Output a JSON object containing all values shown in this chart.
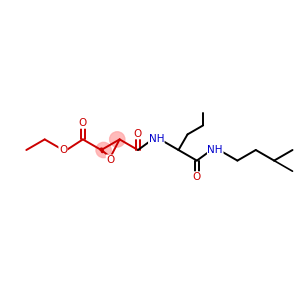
{
  "background_color": "#ffffff",
  "fig_size": [
    3.0,
    3.0
  ],
  "dpi": 100,
  "bond_color": "#000000",
  "epoxide_fill": "#ffaaaa",
  "red_color": "#cc0000",
  "blue_color": "#0000cc",
  "line_width": 1.4,
  "font_size": 7.5,
  "xlim": [
    0,
    10
  ],
  "ylim": [
    2,
    8
  ]
}
